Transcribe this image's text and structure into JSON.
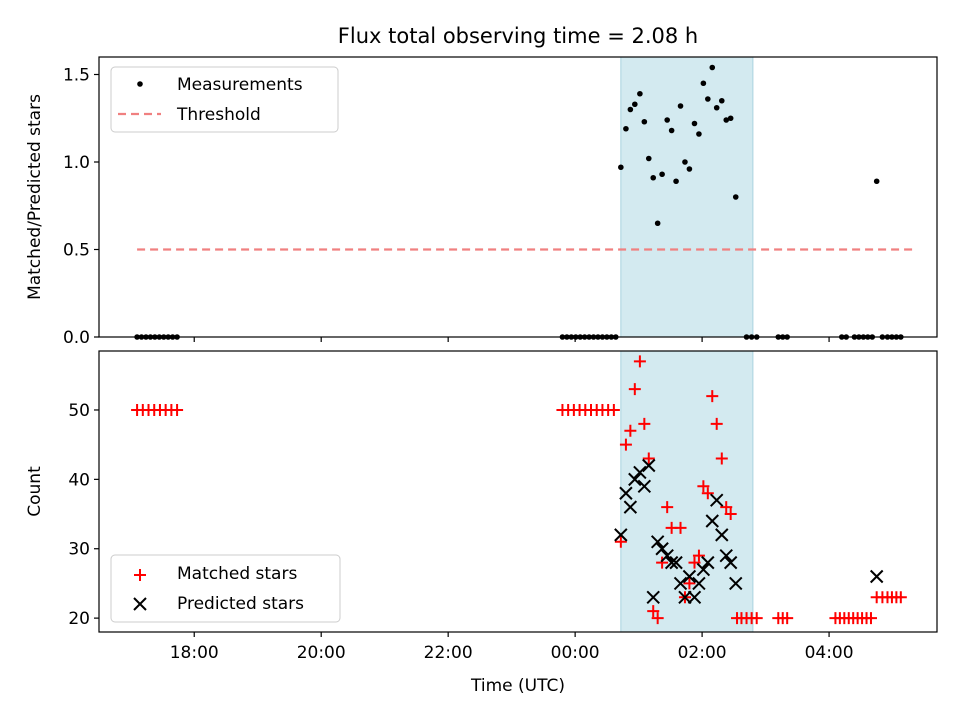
{
  "chart_data": {
    "type": "scatter",
    "title": "Flux total observing time = 2.08 h",
    "xlabel": "Time (UTC)",
    "x_unit": "hours (UTC, continuing past midnight)",
    "xlim": [
      16.5,
      29.7
    ],
    "x_ticks": [
      {
        "x": 18,
        "label": "18:00"
      },
      {
        "x": 20,
        "label": "20:00"
      },
      {
        "x": 22,
        "label": "22:00"
      },
      {
        "x": 24,
        "label": "00:00"
      },
      {
        "x": 26,
        "label": "02:00"
      },
      {
        "x": 28,
        "label": "04:00"
      }
    ],
    "highlight_span": {
      "x0": 24.72,
      "x1": 26.8,
      "color": "#d3eaf0",
      "edge": "#a9d2df"
    },
    "panels": [
      {
        "id": "ratio",
        "ylabel": "Matched/Predicted stars",
        "ylim": [
          0,
          1.6
        ],
        "y_ticks": [
          "0.0",
          "0.5",
          "1.0",
          "1.5"
        ],
        "legend": {
          "position": "top-left",
          "entries": [
            "Measurements",
            "Threshold"
          ]
        },
        "threshold": {
          "name": "Threshold",
          "y": 0.5,
          "x0": 17.1,
          "x1": 29.35,
          "color": "#f08080"
        },
        "series": [
          {
            "name": "Measurements",
            "marker": "dot",
            "color": "#000000",
            "points": [
              [
                17.1,
                0
              ],
              [
                17.17,
                0
              ],
              [
                17.24,
                0
              ],
              [
                17.31,
                0
              ],
              [
                17.38,
                0
              ],
              [
                17.45,
                0
              ],
              [
                17.52,
                0
              ],
              [
                17.59,
                0
              ],
              [
                17.66,
                0
              ],
              [
                17.73,
                0
              ],
              [
                23.8,
                0
              ],
              [
                23.87,
                0
              ],
              [
                23.94,
                0
              ],
              [
                24.01,
                0
              ],
              [
                24.08,
                0
              ],
              [
                24.15,
                0
              ],
              [
                24.22,
                0
              ],
              [
                24.29,
                0
              ],
              [
                24.36,
                0
              ],
              [
                24.43,
                0
              ],
              [
                24.5,
                0
              ],
              [
                24.57,
                0
              ],
              [
                24.64,
                0
              ],
              [
                24.72,
                0.97
              ],
              [
                24.8,
                1.19
              ],
              [
                24.87,
                1.3
              ],
              [
                24.94,
                1.33
              ],
              [
                25.02,
                1.39
              ],
              [
                25.09,
                1.23
              ],
              [
                25.16,
                1.02
              ],
              [
                25.23,
                0.91
              ],
              [
                25.3,
                0.65
              ],
              [
                25.37,
                0.93
              ],
              [
                25.45,
                1.24
              ],
              [
                25.52,
                1.18
              ],
              [
                25.59,
                0.89
              ],
              [
                25.66,
                1.32
              ],
              [
                25.73,
                1.0
              ],
              [
                25.8,
                0.96
              ],
              [
                25.88,
                1.22
              ],
              [
                25.95,
                1.16
              ],
              [
                26.02,
                1.45
              ],
              [
                26.09,
                1.36
              ],
              [
                26.16,
                1.54
              ],
              [
                26.23,
                1.31
              ],
              [
                26.31,
                1.35
              ],
              [
                26.38,
                1.24
              ],
              [
                26.45,
                1.25
              ],
              [
                26.53,
                0.8
              ],
              [
                26.7,
                0
              ],
              [
                26.78,
                0
              ],
              [
                26.86,
                0
              ],
              [
                27.2,
                0
              ],
              [
                27.27,
                0
              ],
              [
                27.34,
                0
              ],
              [
                28.2,
                0
              ],
              [
                28.27,
                0
              ],
              [
                28.4,
                0
              ],
              [
                28.47,
                0
              ],
              [
                28.54,
                0
              ],
              [
                28.61,
                0
              ],
              [
                28.68,
                0
              ],
              [
                28.75,
                0.89
              ],
              [
                28.84,
                0
              ],
              [
                28.92,
                0
              ],
              [
                28.99,
                0
              ],
              [
                29.06,
                0
              ],
              [
                29.13,
                0
              ]
            ]
          }
        ]
      },
      {
        "id": "counts",
        "ylabel": "Count",
        "ylim": [
          18,
          58.5
        ],
        "y_ticks": [
          "20",
          "30",
          "40",
          "50"
        ],
        "legend": {
          "position": "bottom-left",
          "entries": [
            "Matched stars",
            "Predicted stars"
          ]
        },
        "series": [
          {
            "name": "Matched stars",
            "marker": "plus",
            "color": "#ff0000",
            "points": [
              [
                17.1,
                50
              ],
              [
                17.19,
                50
              ],
              [
                17.28,
                50
              ],
              [
                17.37,
                50
              ],
              [
                17.46,
                50
              ],
              [
                17.55,
                50
              ],
              [
                17.64,
                50
              ],
              [
                17.73,
                50
              ],
              [
                23.8,
                50
              ],
              [
                23.89,
                50
              ],
              [
                23.98,
                50
              ],
              [
                24.07,
                50
              ],
              [
                24.16,
                50
              ],
              [
                24.25,
                50
              ],
              [
                24.34,
                50
              ],
              [
                24.43,
                50
              ],
              [
                24.52,
                50
              ],
              [
                24.61,
                50
              ],
              [
                24.72,
                31
              ],
              [
                24.8,
                45
              ],
              [
                24.87,
                47
              ],
              [
                24.94,
                53
              ],
              [
                25.02,
                57
              ],
              [
                25.09,
                48
              ],
              [
                25.16,
                43
              ],
              [
                25.23,
                21
              ],
              [
                25.3,
                20
              ],
              [
                25.37,
                28
              ],
              [
                25.45,
                36
              ],
              [
                25.52,
                33
              ],
              [
                25.66,
                33
              ],
              [
                25.73,
                23
              ],
              [
                25.8,
                25
              ],
              [
                25.88,
                28
              ],
              [
                25.95,
                29
              ],
              [
                26.02,
                39
              ],
              [
                26.09,
                38
              ],
              [
                26.16,
                52
              ],
              [
                26.23,
                48
              ],
              [
                26.31,
                43
              ],
              [
                26.38,
                36
              ],
              [
                26.45,
                35
              ],
              [
                26.55,
                20
              ],
              [
                26.62,
                20
              ],
              [
                26.7,
                20
              ],
              [
                26.78,
                20
              ],
              [
                26.86,
                20
              ],
              [
                27.2,
                20
              ],
              [
                27.27,
                20
              ],
              [
                27.34,
                20
              ],
              [
                28.1,
                20
              ],
              [
                28.17,
                20
              ],
              [
                28.24,
                20
              ],
              [
                28.31,
                20
              ],
              [
                28.38,
                20
              ],
              [
                28.45,
                20
              ],
              [
                28.52,
                20
              ],
              [
                28.59,
                20
              ],
              [
                28.66,
                20
              ],
              [
                28.75,
                23
              ],
              [
                28.84,
                23
              ],
              [
                28.92,
                23
              ],
              [
                28.99,
                23
              ],
              [
                29.06,
                23
              ],
              [
                29.13,
                23
              ]
            ]
          },
          {
            "name": "Predicted stars",
            "marker": "x",
            "color": "#000000",
            "points": [
              [
                24.72,
                32
              ],
              [
                24.8,
                38
              ],
              [
                24.87,
                36
              ],
              [
                24.94,
                40
              ],
              [
                25.02,
                41
              ],
              [
                25.09,
                39
              ],
              [
                25.16,
                42
              ],
              [
                25.23,
                23
              ],
              [
                25.3,
                31
              ],
              [
                25.37,
                30
              ],
              [
                25.45,
                29
              ],
              [
                25.52,
                28
              ],
              [
                25.59,
                28
              ],
              [
                25.66,
                25
              ],
              [
                25.73,
                23
              ],
              [
                25.8,
                26
              ],
              [
                25.88,
                23
              ],
              [
                25.95,
                25
              ],
              [
                26.02,
                27
              ],
              [
                26.09,
                28
              ],
              [
                26.16,
                34
              ],
              [
                26.23,
                37
              ],
              [
                26.31,
                32
              ],
              [
                26.38,
                29
              ],
              [
                26.45,
                28
              ],
              [
                26.53,
                25
              ],
              [
                28.75,
                26
              ]
            ]
          }
        ]
      }
    ]
  }
}
